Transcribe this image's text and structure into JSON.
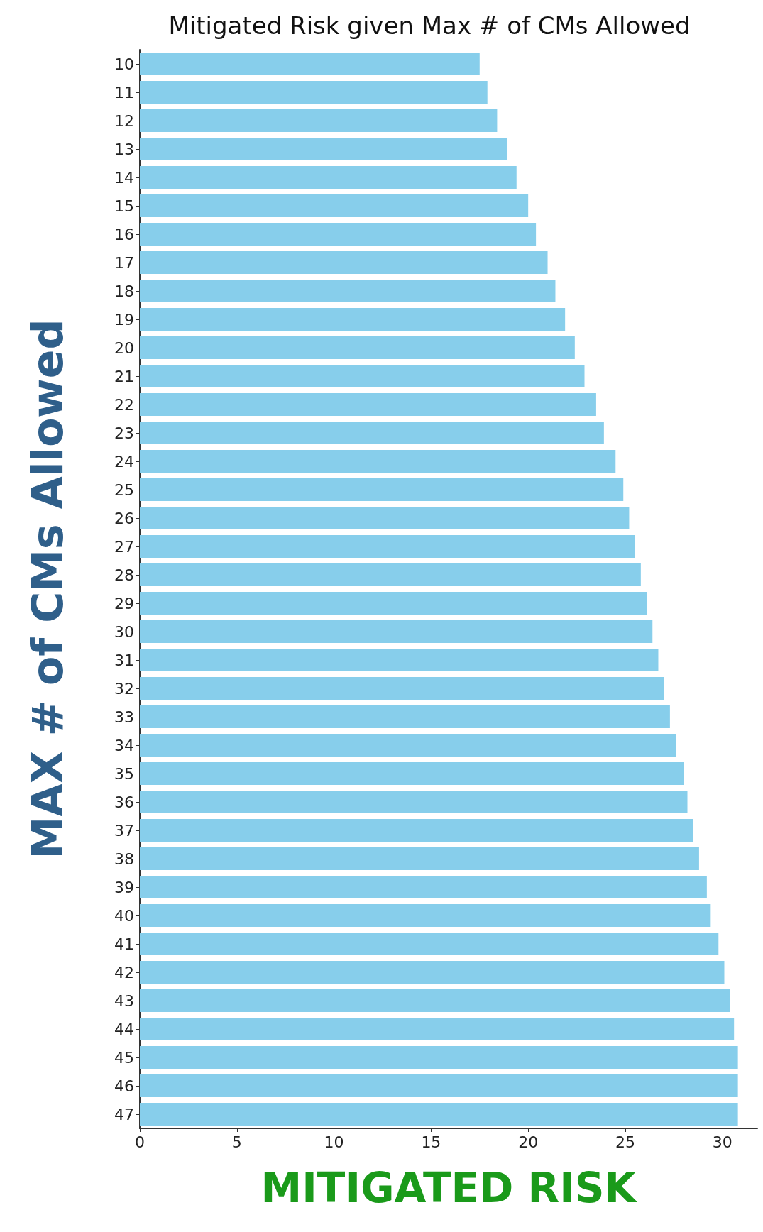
{
  "chart_data": {
    "type": "bar",
    "orientation": "horizontal",
    "title": "Mitigated Risk given Max # of CMs Allowed",
    "xlabel": "MITIGATED RISK",
    "ylabel": "MAX # of CMs Allowed",
    "categories": [
      "10",
      "11",
      "12",
      "13",
      "14",
      "15",
      "16",
      "17",
      "18",
      "19",
      "20",
      "21",
      "22",
      "23",
      "24",
      "25",
      "26",
      "27",
      "28",
      "29",
      "30",
      "31",
      "32",
      "33",
      "34",
      "35",
      "36",
      "37",
      "38",
      "39",
      "40",
      "41",
      "42",
      "43",
      "44",
      "45",
      "46",
      "47"
    ],
    "values": [
      17.5,
      17.9,
      18.4,
      18.9,
      19.4,
      20.0,
      20.4,
      21.0,
      21.4,
      21.9,
      22.4,
      22.9,
      23.5,
      23.9,
      24.5,
      24.9,
      25.2,
      25.5,
      25.8,
      26.1,
      26.4,
      26.7,
      27.0,
      27.3,
      27.6,
      28.0,
      28.2,
      28.5,
      28.8,
      29.2,
      29.4,
      29.8,
      30.1,
      30.4,
      30.6,
      30.8,
      30.8,
      30.8
    ],
    "color": "#87ceeb",
    "xlim": [
      0,
      31.8
    ],
    "xticks": [
      0,
      5,
      10,
      15,
      20,
      25,
      30
    ]
  }
}
